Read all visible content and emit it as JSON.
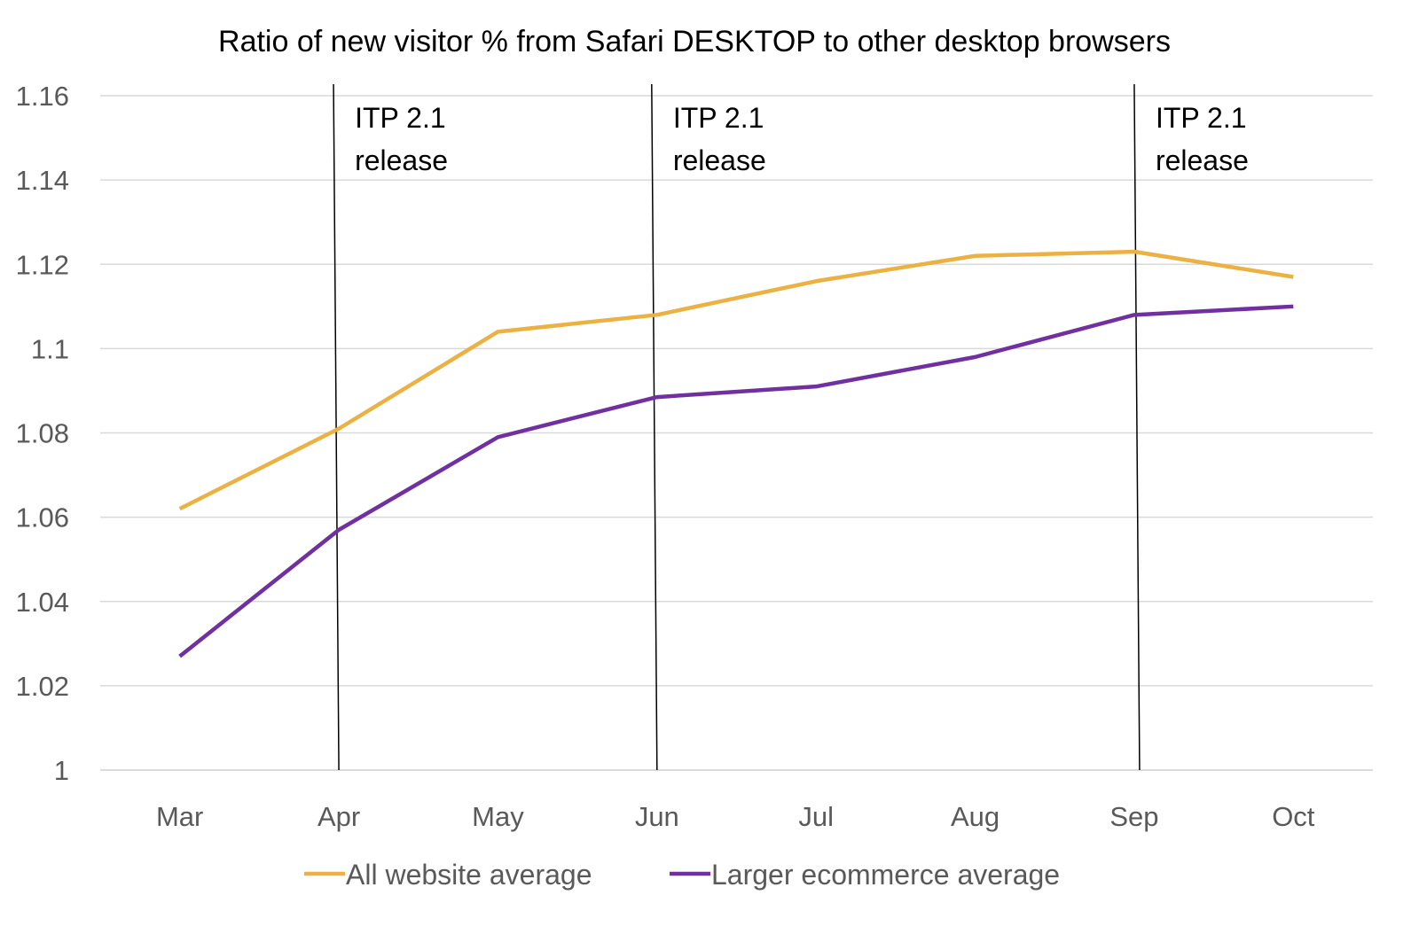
{
  "chart_data": {
    "type": "line",
    "title": "Ratio of new visitor % from Safari DESKTOP to other desktop browsers",
    "xlabel": "",
    "ylabel": "",
    "categories": [
      "Mar",
      "Apr",
      "May",
      "Jun",
      "Jul",
      "Aug",
      "Sep",
      "Oct"
    ],
    "ylim": [
      1,
      1.16
    ],
    "yticks": [
      "1",
      "1.02",
      "1.04",
      "1.06",
      "1.08",
      "1.1",
      "1.12",
      "1.14",
      "1.16"
    ],
    "grid": true,
    "legend": "bottom",
    "series": [
      {
        "name": "All website average",
        "color": "#EBB143",
        "values": [
          1.062,
          1.081,
          1.104,
          1.108,
          1.116,
          1.122,
          1.123,
          1.117
        ]
      },
      {
        "name": "Larger ecommerce average",
        "color": "#7030A0",
        "values": [
          1.027,
          1.057,
          1.079,
          1.0885,
          1.091,
          1.098,
          1.108,
          1.11
        ]
      }
    ],
    "annotations": [
      {
        "at": "Apr",
        "line1": "ITP 2.1",
        "line2": "release"
      },
      {
        "at": "Jun",
        "line1": "ITP 2.1",
        "line2": "release"
      },
      {
        "at": "Sep",
        "line1": "ITP 2.1",
        "line2": "release"
      }
    ]
  }
}
